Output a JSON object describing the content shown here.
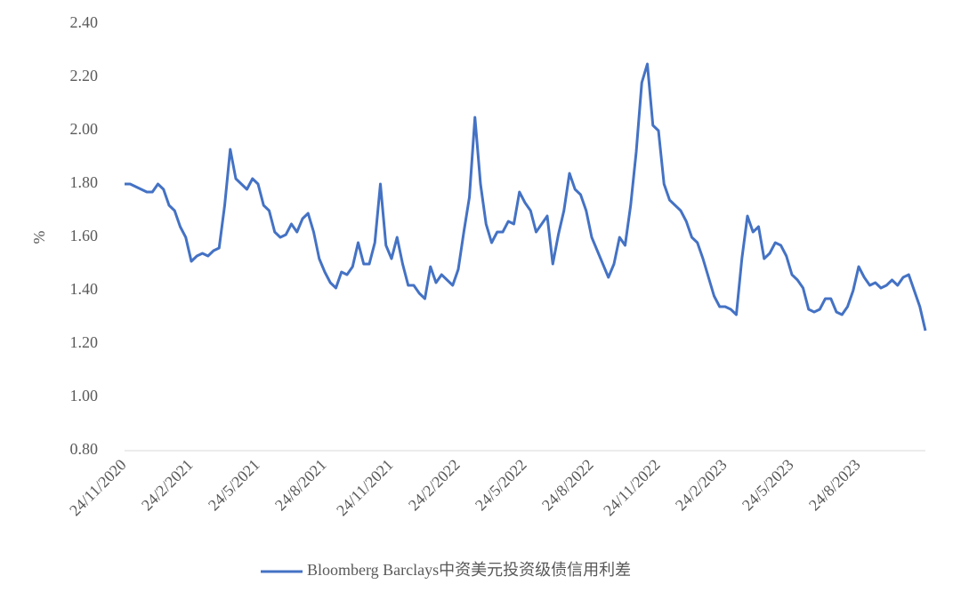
{
  "chart_data": {
    "type": "line",
    "categories": [
      "24/11/2020",
      null,
      null,
      null,
      null,
      null,
      null,
      null,
      null,
      null,
      null,
      null,
      "24/2/2021",
      null,
      null,
      null,
      null,
      null,
      null,
      null,
      null,
      null,
      null,
      null,
      "24/5/2021",
      null,
      null,
      null,
      null,
      null,
      null,
      null,
      null,
      null,
      null,
      null,
      "24/8/2021",
      null,
      null,
      null,
      null,
      null,
      null,
      null,
      null,
      null,
      null,
      null,
      "24/11/2021",
      null,
      null,
      null,
      null,
      null,
      null,
      null,
      null,
      null,
      null,
      null,
      "24/2/2022",
      null,
      null,
      null,
      null,
      null,
      null,
      null,
      null,
      null,
      null,
      null,
      "24/5/2022",
      null,
      null,
      null,
      null,
      null,
      null,
      null,
      null,
      null,
      null,
      null,
      "24/8/2022",
      null,
      null,
      null,
      null,
      null,
      null,
      null,
      null,
      null,
      null,
      null,
      "24/11/2022",
      null,
      null,
      null,
      null,
      null,
      null,
      null,
      null,
      null,
      null,
      null,
      "24/2/2023",
      null,
      null,
      null,
      null,
      null,
      null,
      null,
      null,
      null,
      null,
      null,
      "24/5/2023",
      null,
      null,
      null,
      null,
      null,
      null,
      null,
      null,
      null,
      null,
      null,
      "24/8/2023",
      null,
      null,
      null,
      null,
      null,
      null,
      null,
      null,
      null,
      null,
      null,
      null
    ],
    "series": [
      {
        "name": "Bloomberg Barclays中资美元投资级债信用利差",
        "color": "#4472c4",
        "values": [
          1.8,
          1.8,
          1.79,
          1.78,
          1.77,
          1.77,
          1.8,
          1.78,
          1.72,
          1.7,
          1.64,
          1.6,
          1.51,
          1.53,
          1.54,
          1.53,
          1.55,
          1.56,
          1.72,
          1.93,
          1.82,
          1.8,
          1.78,
          1.82,
          1.8,
          1.72,
          1.7,
          1.62,
          1.6,
          1.61,
          1.65,
          1.62,
          1.67,
          1.69,
          1.62,
          1.52,
          1.47,
          1.43,
          1.41,
          1.47,
          1.46,
          1.49,
          1.58,
          1.5,
          1.5,
          1.58,
          1.8,
          1.57,
          1.52,
          1.6,
          1.5,
          1.42,
          1.42,
          1.39,
          1.37,
          1.49,
          1.43,
          1.46,
          1.44,
          1.42,
          1.48,
          1.62,
          1.75,
          2.05,
          1.8,
          1.65,
          1.58,
          1.62,
          1.62,
          1.66,
          1.65,
          1.77,
          1.73,
          1.7,
          1.62,
          1.65,
          1.68,
          1.5,
          1.61,
          1.7,
          1.84,
          1.78,
          1.76,
          1.7,
          1.6,
          1.55,
          1.5,
          1.45,
          1.5,
          1.6,
          1.57,
          1.72,
          1.92,
          2.18,
          2.25,
          2.02,
          2.0,
          1.8,
          1.74,
          1.72,
          1.7,
          1.66,
          1.6,
          1.58,
          1.52,
          1.45,
          1.38,
          1.34,
          1.34,
          1.33,
          1.31,
          1.52,
          1.68,
          1.62,
          1.64,
          1.52,
          1.54,
          1.58,
          1.57,
          1.53,
          1.46,
          1.44,
          1.41,
          1.33,
          1.32,
          1.33,
          1.37,
          1.37,
          1.32,
          1.31,
          1.34,
          1.4,
          1.49,
          1.45,
          1.42,
          1.43,
          1.41,
          1.42,
          1.44,
          1.42,
          1.45,
          1.46,
          1.4,
          1.34,
          1.25
        ]
      }
    ],
    "ylabel": "%",
    "ylim": [
      0.8,
      2.4
    ],
    "yticks": [
      {
        "value": 0.8,
        "label": "0.80"
      },
      {
        "value": 1.0,
        "label": "1.00"
      },
      {
        "value": 1.2,
        "label": "1.20"
      },
      {
        "value": 1.4,
        "label": "1.40"
      },
      {
        "value": 1.6,
        "label": "1.60"
      },
      {
        "value": 1.8,
        "label": "1.80"
      },
      {
        "value": 2.0,
        "label": "2.00"
      },
      {
        "value": 2.2,
        "label": "2.20"
      },
      {
        "value": 2.4,
        "label": "2.40"
      }
    ],
    "grid": false,
    "legend": "bottom"
  }
}
